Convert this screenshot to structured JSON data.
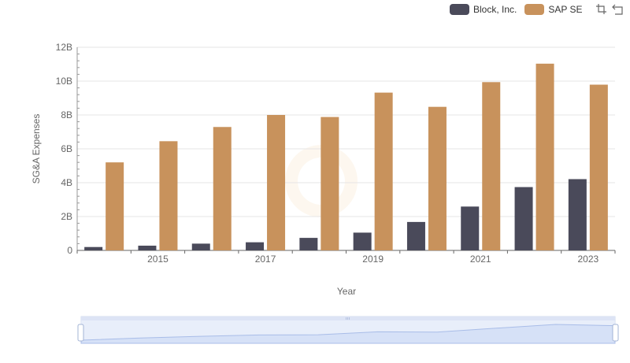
{
  "legend": {
    "items": [
      {
        "label": "Block, Inc.",
        "color": "#4a4a5a"
      },
      {
        "label": "SAP SE",
        "color": "#c8925c"
      }
    ]
  },
  "toolbox": {
    "zoom_icon": "zoom-select-icon",
    "restore_icon": "restore-icon"
  },
  "chart_data": {
    "type": "bar",
    "x": [
      2014,
      2015,
      2016,
      2017,
      2018,
      2019,
      2020,
      2021,
      2022,
      2023
    ],
    "xtick_labels": [
      "2015",
      "2017",
      "2019",
      "2021",
      "2023"
    ],
    "ytick_labels": [
      "0",
      "2B",
      "4B",
      "6B",
      "8B",
      "10B",
      "12B"
    ],
    "ylim": [
      0,
      12000000000
    ],
    "xlabel": "Year",
    "ylabel": "SG&A Expenses",
    "grid": true,
    "legend_position": "top-right",
    "series": [
      {
        "name": "Block, Inc.",
        "color": "#4a4a5a",
        "values": [
          200000000,
          280000000,
          400000000,
          480000000,
          740000000,
          1050000000,
          1680000000,
          2590000000,
          3740000000,
          4210000000
        ]
      },
      {
        "name": "SAP SE",
        "color": "#c8925c",
        "values": [
          5200000000,
          6450000000,
          7290000000,
          8000000000,
          7880000000,
          9320000000,
          8480000000,
          9940000000,
          11030000000,
          9790000000
        ]
      }
    ]
  }
}
